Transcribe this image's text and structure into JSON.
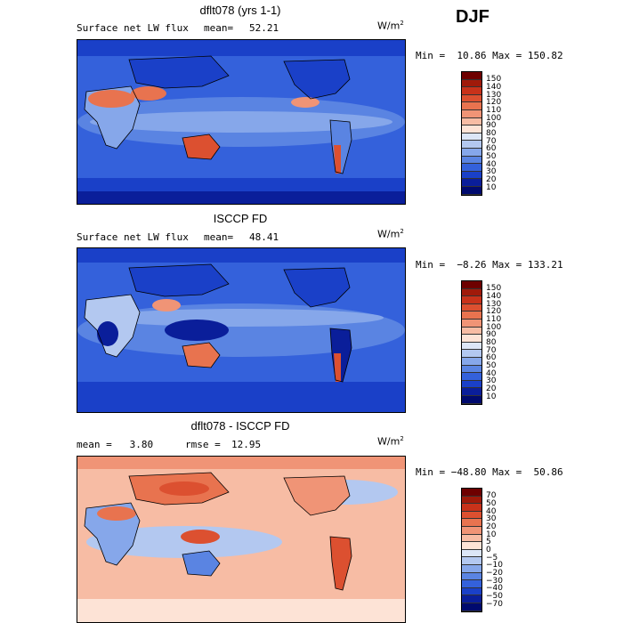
{
  "season": "DJF",
  "panels": [
    {
      "title": "dflt078 (yrs 1-1)",
      "left_label": "Surface net LW flux",
      "mean_label": "mean=",
      "mean_value": "52.21",
      "units": "W/m",
      "units_exp": "2",
      "minmax": "Min =  10.86 Max = 150.82",
      "levels": [
        "150",
        "140",
        "130",
        "120",
        "110",
        "100",
        "90",
        "80",
        "70",
        "60",
        "50",
        "40",
        "30",
        "20",
        "10"
      ]
    },
    {
      "title": "ISCCP FD",
      "left_label": "Surface net LW flux",
      "mean_label": "mean=",
      "mean_value": "48.41",
      "units": "W/m",
      "units_exp": "2",
      "minmax": "Min =  −8.26 Max = 133.21",
      "levels": [
        "150",
        "140",
        "130",
        "120",
        "110",
        "100",
        "90",
        "80",
        "70",
        "60",
        "50",
        "40",
        "30",
        "20",
        "10"
      ]
    },
    {
      "title": "dflt078 - ISCCP FD",
      "left_label": "mean =   3.80",
      "mean_label": "rmse =",
      "mean_value": "12.95",
      "units": "W/m",
      "units_exp": "2",
      "minmax": "Min = −48.80 Max =  50.86",
      "levels": [
        "70",
        "50",
        "40",
        "30",
        "20",
        "10",
        "5",
        "0",
        "−5",
        "−10",
        "−20",
        "−30",
        "−40",
        "−50",
        "−70"
      ]
    }
  ],
  "colors": {
    "abs_scale": [
      "#6e0000",
      "#a01a0a",
      "#c8321a",
      "#dc5030",
      "#e8734f",
      "#f09476",
      "#f7bca4",
      "#fde3d6",
      "#dce6f7",
      "#b3c8f0",
      "#86a7ea",
      "#5a84e2",
      "#3461db",
      "#1a40c8",
      "#0a1e9a",
      "#000a6e"
    ],
    "diff_scale": [
      "#6e0000",
      "#a01a0a",
      "#c8321a",
      "#dc5030",
      "#e8734f",
      "#f09476",
      "#f7bca4",
      "#fde3d6",
      "#dce6f7",
      "#b3c8f0",
      "#86a7ea",
      "#5a84e2",
      "#3461db",
      "#1a40c8",
      "#0a1e9a",
      "#000a6e"
    ]
  }
}
